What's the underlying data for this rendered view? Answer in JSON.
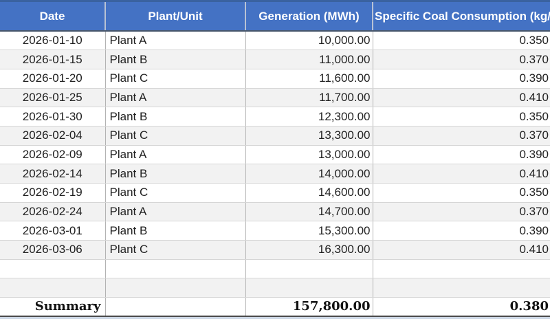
{
  "table": {
    "columns": [
      {
        "label": "Date"
      },
      {
        "label": "Plant/Unit"
      },
      {
        "label": "Generation (MWh)"
      },
      {
        "label": "Specific Coal Consumption (kg/kWh)"
      }
    ],
    "rows": [
      [
        "2026-01-10",
        "Plant A",
        "10,000.00",
        "0.350"
      ],
      [
        "2026-01-15",
        "Plant B",
        "11,000.00",
        "0.370"
      ],
      [
        "2026-01-20",
        "Plant C",
        "11,600.00",
        "0.390"
      ],
      [
        "2026-01-25",
        "Plant A",
        "11,700.00",
        "0.410"
      ],
      [
        "2026-01-30",
        "Plant B",
        "12,300.00",
        "0.350"
      ],
      [
        "2026-02-04",
        "Plant C",
        "13,300.00",
        "0.370"
      ],
      [
        "2026-02-09",
        "Plant A",
        "13,000.00",
        "0.390"
      ],
      [
        "2026-02-14",
        "Plant B",
        "14,000.00",
        "0.410"
      ],
      [
        "2026-02-19",
        "Plant C",
        "14,600.00",
        "0.350"
      ],
      [
        "2026-02-24",
        "Plant A",
        "14,700.00",
        "0.370"
      ],
      [
        "2026-03-01",
        "Plant B",
        "15,300.00",
        "0.390"
      ],
      [
        "2026-03-06",
        "Plant C",
        "16,300.00",
        "0.410"
      ]
    ],
    "empty_row_count": 2,
    "summary": {
      "label": "Summary",
      "generation_total": "157,800.00",
      "coal_consumption_avg": "0.380"
    }
  },
  "colors": {
    "header_bg": "#4472c4",
    "header_top_border": "#3a62a0",
    "header_bottom_border": "#47566b",
    "header_text": "#ffffff",
    "row_stripe": "#f2f2f2",
    "cell_border_vertical": "#b3b3b3",
    "cell_border_horizontal": "#d6d6d6",
    "summary_bottom_border": "#4a4a4a",
    "bottom_strip": "#ccd7e5"
  }
}
